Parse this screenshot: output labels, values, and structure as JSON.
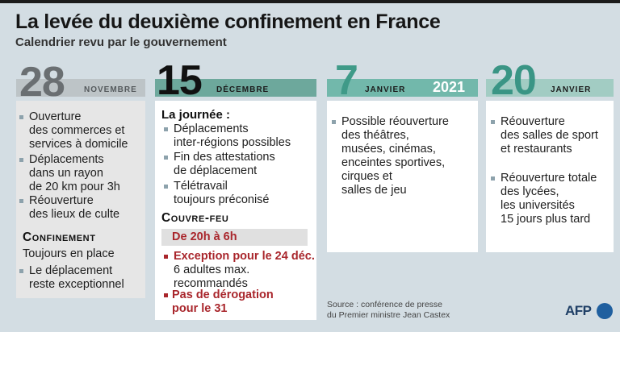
{
  "title": "La levée du deuxième confinement en France",
  "subtitle": "Calendrier revu par le gouvernement",
  "columns": [
    {
      "day": "28",
      "month": "NOVEMBRE",
      "year": "",
      "items": [
        [
          "Ouverture",
          "des commerces et",
          "services à domicile"
        ],
        [
          "Déplacements",
          "dans un rayon",
          "de 20 km pour 3h"
        ],
        [
          "Réouverture",
          "des lieux de culte"
        ]
      ],
      "section_title": "Confinement",
      "section_note": "Toujours en place",
      "section_items": [
        [
          "Le déplacement",
          "reste exceptionnel"
        ]
      ]
    },
    {
      "day": "15",
      "month": "DÉCEMBRE",
      "year": "",
      "heading": "La journée :",
      "items": [
        [
          "Déplacements",
          "inter-régions possibles"
        ],
        [
          "Fin des attestations",
          "de déplacement"
        ],
        [
          "Télétravail",
          "toujours préconisé"
        ]
      ],
      "section_title": "Couvre-feu",
      "curfew_hours": "De 20h à 6h",
      "exception_title": "Exception pour le 24 déc.",
      "exception_lines": [
        "6 adultes max.",
        "recommandés"
      ],
      "derogation_lines": [
        "Pas de dérogation",
        "pour le 31"
      ]
    },
    {
      "day": "7",
      "month": "JANVIER",
      "year": "2021",
      "items": [
        [
          "Possible réouverture",
          "des théâtres,",
          "musées, cinémas,",
          "enceintes sportives,",
          "cirques et",
          "salles de jeu"
        ]
      ]
    },
    {
      "day": "20",
      "month": "JANVIER",
      "year": "",
      "items": [
        [
          "Réouverture",
          "des salles de sport",
          "et restaurants"
        ],
        [
          "Réouverture totale",
          "des lycées,",
          "les universités",
          "15 jours plus tard"
        ]
      ]
    }
  ],
  "source_lines": [
    "Source : conférence de presse",
    "du Premier ministre Jean Castex"
  ],
  "logo_text": "AFP",
  "colors": {
    "background": "#d3dde3",
    "col1_accent": "#bdc4c7",
    "col1_number": "#6a6f72",
    "col2_accent": "#6da89c",
    "col3_accent": "#72b8ab",
    "col3_number": "#3f9a88",
    "col4_accent": "#a2ccc3",
    "col4_number": "#3a9585",
    "bullet": "#8da2ac",
    "red": "#a9262c",
    "curfew_bar": "#e0e0e0",
    "card_grey": "#e6e6e6",
    "card_white": "#ffffff"
  }
}
